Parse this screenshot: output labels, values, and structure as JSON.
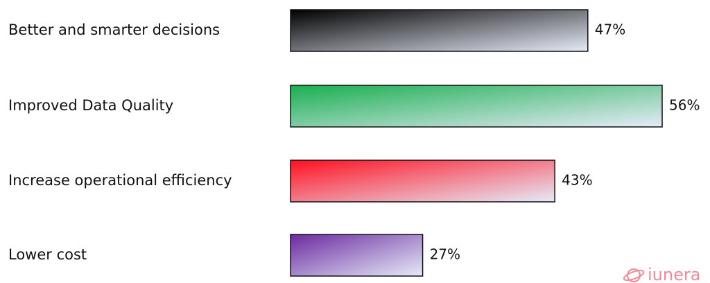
{
  "chart_data": {
    "type": "bar",
    "orientation": "horizontal",
    "categories": [
      "Better and smarter decisions",
      "Improved Data Quality",
      "Increase operational efficiency",
      "Lower cost"
    ],
    "values": [
      47,
      56,
      43,
      27
    ],
    "value_labels": [
      "47%",
      "56%",
      "43%",
      "27%"
    ],
    "colors": [
      "#000000",
      "#1aaf50",
      "#ff1020",
      "#6a2aa0"
    ],
    "xlim": [
      11,
      56
    ],
    "watermark": "iunera"
  }
}
